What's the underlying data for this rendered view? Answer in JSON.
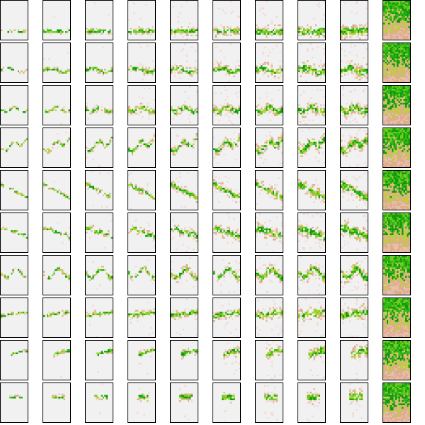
{
  "figure": {
    "rows": 10,
    "columns": 10,
    "cells_per_tile": 16,
    "colors": {
      "background": "#f1f1f1",
      "dark_green": "#119911",
      "green": "#33bb11",
      "light_green": "#77cc22",
      "yellow_green": "#b7d433",
      "khaki": "#d8c070",
      "tan": "#dcae8a",
      "pink": "#e9bcb0",
      "light_pink": "#f3d9d4",
      "tile_border": "#000000"
    },
    "pattern_rows": [
      {
        "shape": "cluster-bottom"
      },
      {
        "shape": "band-lower"
      },
      {
        "shape": "scatter-lower"
      },
      {
        "shape": "wavy-diagonal"
      },
      {
        "shape": "arc-down"
      },
      {
        "shape": "steps-down"
      },
      {
        "shape": "zigzag"
      },
      {
        "shape": "cluster-right"
      },
      {
        "shape": "cluster-right-upper"
      },
      {
        "shape": "small-cluster"
      }
    ]
  }
}
